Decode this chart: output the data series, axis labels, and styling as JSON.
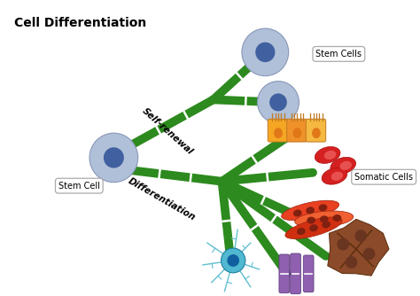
{
  "title": "Cell Differentiation",
  "background_color": "#ffffff",
  "title_fontsize": 10,
  "title_fontweight": "bold",
  "stem_cell_color": "#b0c0d8",
  "stem_cell_inner_color": "#4060a0",
  "stem_cell_label": "Stem Cell",
  "stem_cells_label": "Stem Cells",
  "somatic_cells_label": "Somatic Cells",
  "self_renewal_label": "Self-renewal",
  "differentiation_label": "Differentiation",
  "green_color": "#2d8a1e",
  "branch_lw": 7
}
